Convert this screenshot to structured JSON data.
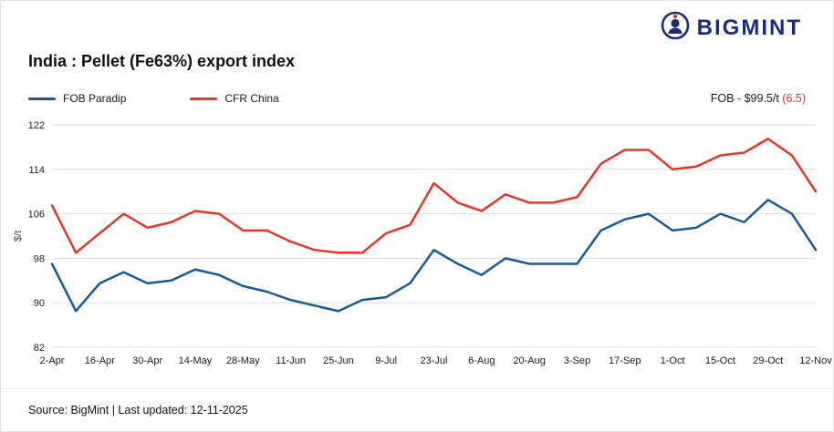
{
  "logo": {
    "text": "BIGMINT"
  },
  "title": "India : Pellet (Fe63%) export index",
  "legend": {
    "items": [
      {
        "label": "FOB Paradip",
        "color": "#1a5a96"
      },
      {
        "label": "CFR China",
        "color": "#e3372e"
      }
    ]
  },
  "annotation": {
    "text": "FOB - $99.5/t ",
    "change": "(6.5)",
    "change_color": "#e3372e"
  },
  "footer": {
    "text": "Source: BigMint | Last updated: 12-11-2025"
  },
  "chart_data": {
    "type": "line",
    "title": "India : Pellet (Fe63%) export index",
    "ylabel": "$/t",
    "ylim": [
      82,
      122
    ],
    "yticks": [
      82,
      90,
      98,
      106,
      114,
      122
    ],
    "grid": true,
    "legend_position": "top-left",
    "x": [
      "2-Apr",
      "9-Apr",
      "16-Apr",
      "23-Apr",
      "30-Apr",
      "7-May",
      "14-May",
      "21-May",
      "28-May",
      "4-Jun",
      "11-Jun",
      "18-Jun",
      "25-Jun",
      "2-Jul",
      "9-Jul",
      "16-Jul",
      "23-Jul",
      "30-Jul",
      "6-Aug",
      "13-Aug",
      "20-Aug",
      "27-Aug",
      "3-Sep",
      "10-Sep",
      "17-Sep",
      "24-Sep",
      "1-Oct",
      "8-Oct",
      "15-Oct",
      "22-Oct",
      "29-Oct",
      "5-Nov",
      "12-Nov"
    ],
    "xtick_every": 2,
    "xtick_labels": [
      "2-Apr",
      "16-Apr",
      "30-Apr",
      "14-May",
      "28-May",
      "11-Jun",
      "25-Jun",
      "9-Jul",
      "23-Jul",
      "6-Aug",
      "20-Aug",
      "3-Sep",
      "17-Sep",
      "1-Oct",
      "15-Oct",
      "29-Oct",
      "12-Nov"
    ],
    "series": [
      {
        "name": "FOB Paradip",
        "color": "#1a5a96",
        "values": [
          97,
          88.5,
          93.5,
          95.5,
          93.5,
          94,
          96,
          95,
          93,
          92,
          90.5,
          89.5,
          88.5,
          90.5,
          91,
          93.5,
          99.5,
          97,
          95,
          98,
          97,
          97,
          97,
          103,
          105,
          106,
          103,
          103.5,
          106,
          104.5,
          108.5,
          106,
          99.5
        ]
      },
      {
        "name": "CFR China",
        "color": "#e3372e",
        "values": [
          107.5,
          99,
          102.5,
          106,
          103.5,
          104.5,
          106.5,
          106,
          103,
          103,
          101,
          99.5,
          99,
          99,
          102.5,
          104,
          111.5,
          108,
          106.5,
          109.5,
          108,
          108,
          109,
          115,
          117.5,
          117.5,
          114,
          114.5,
          116.5,
          117,
          119.5,
          116.5,
          110
        ]
      }
    ]
  }
}
